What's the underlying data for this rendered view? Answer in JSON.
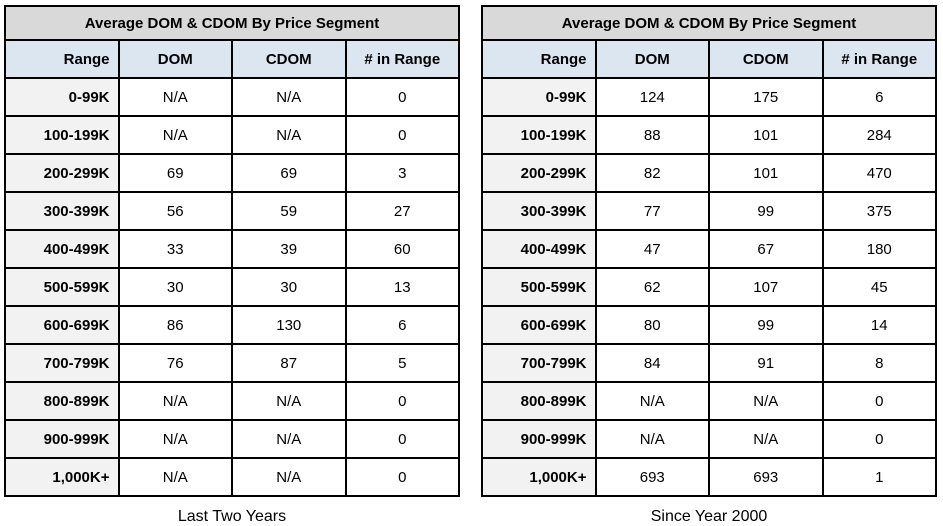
{
  "colors": {
    "title_bg": "#d9d9d9",
    "header_bg": "#dce6f1",
    "range_col_bg": "#f2f2f2",
    "border": "#000000",
    "text": "#000000",
    "page_bg": "#ffffff"
  },
  "chart_data": [
    {
      "type": "table",
      "title": "Average DOM & CDOM By Price Segment",
      "caption": "Last Two Years",
      "columns": [
        "Range",
        "DOM",
        "CDOM",
        "# in Range"
      ],
      "rows": [
        [
          "0-99K",
          "N/A",
          "N/A",
          "0"
        ],
        [
          "100-199K",
          "N/A",
          "N/A",
          "0"
        ],
        [
          "200-299K",
          "69",
          "69",
          "3"
        ],
        [
          "300-399K",
          "56",
          "59",
          "27"
        ],
        [
          "400-499K",
          "33",
          "39",
          "60"
        ],
        [
          "500-599K",
          "30",
          "30",
          "13"
        ],
        [
          "600-699K",
          "86",
          "130",
          "6"
        ],
        [
          "700-799K",
          "76",
          "87",
          "5"
        ],
        [
          "800-899K",
          "N/A",
          "N/A",
          "0"
        ],
        [
          "900-999K",
          "N/A",
          "N/A",
          "0"
        ],
        [
          "1,000K+",
          "N/A",
          "N/A",
          "0"
        ]
      ]
    },
    {
      "type": "table",
      "title": "Average DOM & CDOM By Price Segment",
      "caption": "Since Year 2000",
      "columns": [
        "Range",
        "DOM",
        "CDOM",
        "# in Range"
      ],
      "rows": [
        [
          "0-99K",
          "124",
          "175",
          "6"
        ],
        [
          "100-199K",
          "88",
          "101",
          "284"
        ],
        [
          "200-299K",
          "82",
          "101",
          "470"
        ],
        [
          "300-399K",
          "77",
          "99",
          "375"
        ],
        [
          "400-499K",
          "47",
          "67",
          "180"
        ],
        [
          "500-599K",
          "62",
          "107",
          "45"
        ],
        [
          "600-699K",
          "80",
          "99",
          "14"
        ],
        [
          "700-799K",
          "84",
          "91",
          "8"
        ],
        [
          "800-899K",
          "N/A",
          "N/A",
          "0"
        ],
        [
          "900-999K",
          "N/A",
          "N/A",
          "0"
        ],
        [
          "1,000K+",
          "693",
          "693",
          "1"
        ]
      ]
    }
  ]
}
